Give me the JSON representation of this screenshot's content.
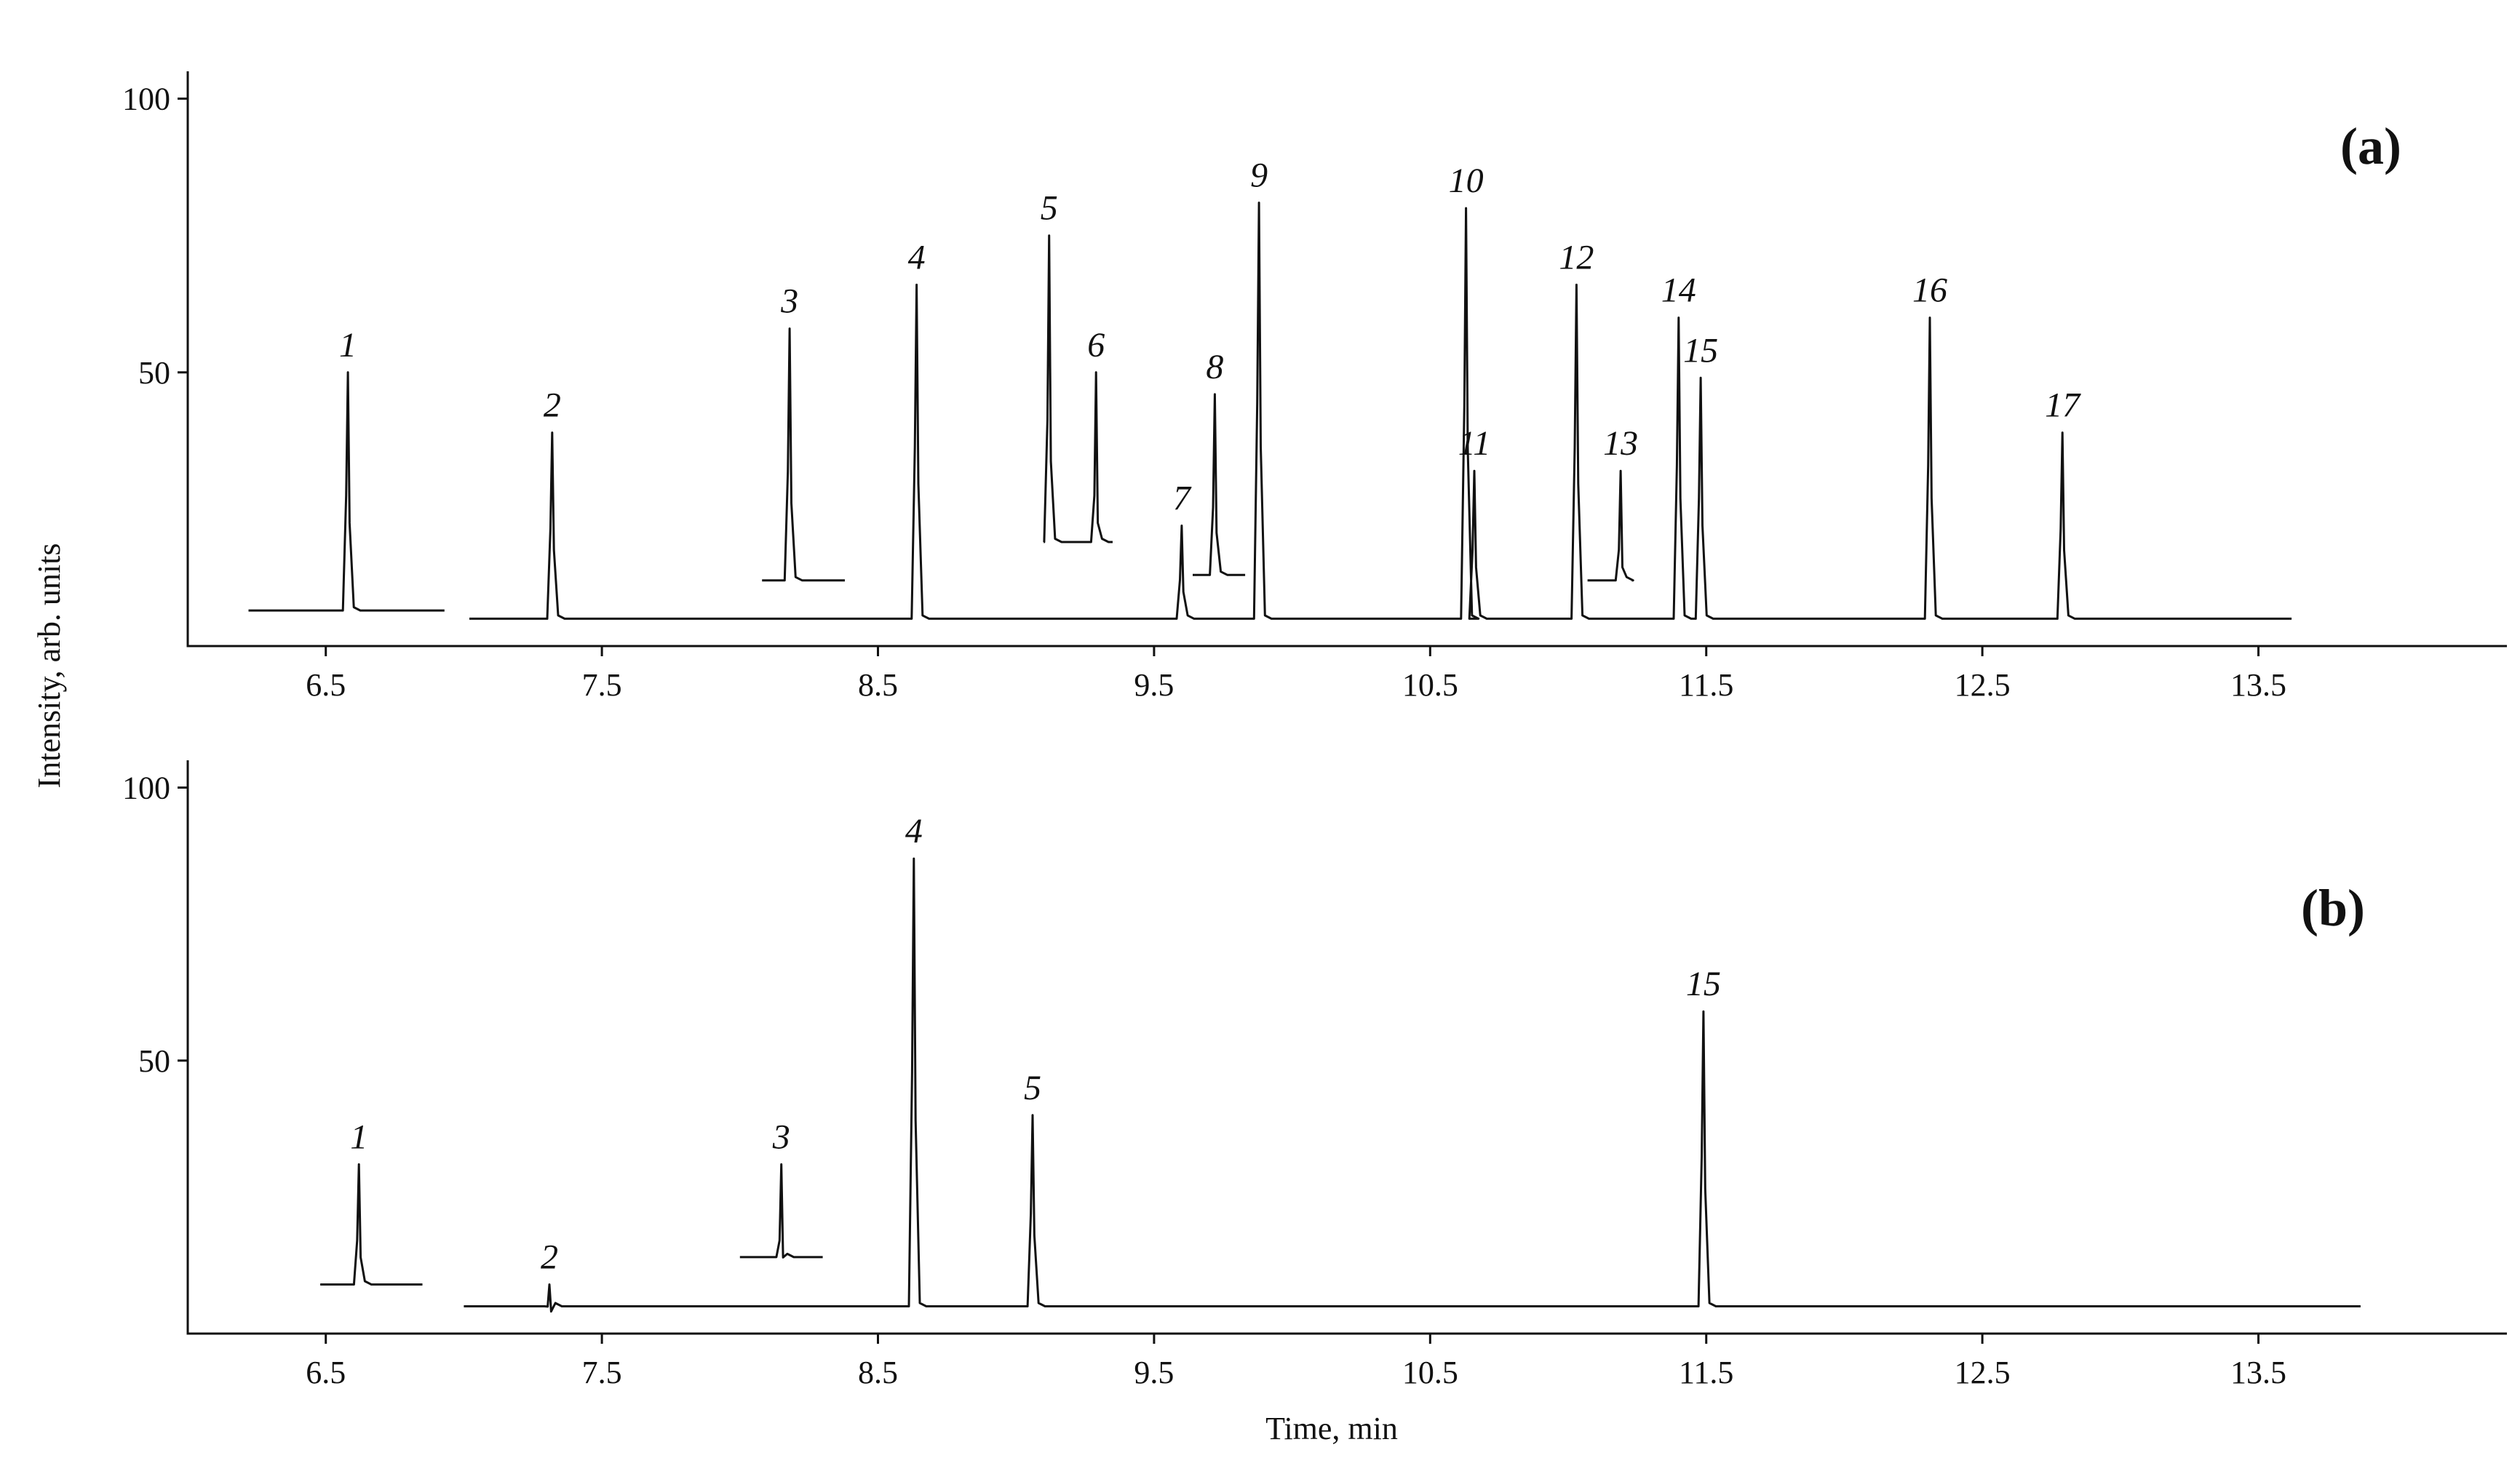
{
  "chart_data": [
    {
      "panel": "(a)",
      "type": "line",
      "xlabel": "Time, min",
      "ylabel": "Intensity, arb. units",
      "xlim": [
        6.0,
        14.4
      ],
      "ylim": [
        0,
        105
      ],
      "x_ticks": [
        "6.5",
        "7.5",
        "8.5",
        "9.5",
        "10.5",
        "11.5",
        "12.5",
        "13.5"
      ],
      "y_ticks": [
        "50",
        "100"
      ],
      "grid": false,
      "segments": [
        {
          "x_start": 6.22,
          "x_end": 6.93,
          "baseline": 6.5
        },
        {
          "x_start": 7.02,
          "x_end": 8.33,
          "baseline": 5.0
        },
        {
          "x_start": 8.33,
          "x_end": 13.62,
          "baseline": 5.0
        }
      ],
      "inset_segments": [
        {
          "x_start": 8.08,
          "x_end": 8.38,
          "baseline": 12.0
        },
        {
          "x_start": 9.1,
          "x_end": 9.35,
          "baseline": 19.0
        },
        {
          "x_start": 9.64,
          "x_end": 9.83,
          "baseline": 13.0
        },
        {
          "x_start": 11.07,
          "x_end": 11.23,
          "baseline": 12.0
        }
      ],
      "peaks": [
        {
          "label": "1",
          "x": 6.58,
          "y": 50
        },
        {
          "label": "2",
          "x": 7.32,
          "y": 39
        },
        {
          "label": "3",
          "x": 8.18,
          "y": 58
        },
        {
          "label": "4",
          "x": 8.64,
          "y": 66
        },
        {
          "label": "5",
          "x": 9.12,
          "y": 75
        },
        {
          "label": "6",
          "x": 9.29,
          "y": 50
        },
        {
          "label": "7",
          "x": 9.6,
          "y": 22
        },
        {
          "label": "8",
          "x": 9.72,
          "y": 46
        },
        {
          "label": "9",
          "x": 9.88,
          "y": 81
        },
        {
          "label": "10",
          "x": 10.63,
          "y": 80
        },
        {
          "label": "11",
          "x": 10.66,
          "y": 32
        },
        {
          "label": "12",
          "x": 11.03,
          "y": 66
        },
        {
          "label": "13",
          "x": 11.19,
          "y": 32
        },
        {
          "label": "14",
          "x": 11.4,
          "y": 60
        },
        {
          "label": "15",
          "x": 11.48,
          "y": 49
        },
        {
          "label": "16",
          "x": 12.31,
          "y": 60
        },
        {
          "label": "17",
          "x": 12.79,
          "y": 39
        }
      ]
    },
    {
      "panel": "(b)",
      "type": "line",
      "xlabel": "Time, min",
      "ylabel": "Intensity, arb. units",
      "xlim": [
        6.0,
        14.4
      ],
      "ylim": [
        0,
        105
      ],
      "x_ticks": [
        "6.5",
        "7.5",
        "8.5",
        "9.5",
        "10.5",
        "11.5",
        "12.5",
        "13.5"
      ],
      "y_ticks": [
        "50",
        "100"
      ],
      "grid": false,
      "segments": [
        {
          "x_start": 6.48,
          "x_end": 6.85,
          "baseline": 9.0
        },
        {
          "x_start": 7.0,
          "x_end": 13.87,
          "baseline": 5.0
        }
      ],
      "inset_segments": [
        {
          "x_start": 8.0,
          "x_end": 8.3,
          "baseline": 14.0
        }
      ],
      "peaks": [
        {
          "label": "1",
          "x": 6.62,
          "y": 31
        },
        {
          "label": "2",
          "x": 7.31,
          "y": 9
        },
        {
          "label": "3",
          "x": 8.15,
          "y": 31
        },
        {
          "label": "4",
          "x": 8.63,
          "y": 87
        },
        {
          "label": "5",
          "x": 9.06,
          "y": 40
        },
        {
          "label": "15",
          "x": 11.49,
          "y": 59
        }
      ]
    }
  ]
}
